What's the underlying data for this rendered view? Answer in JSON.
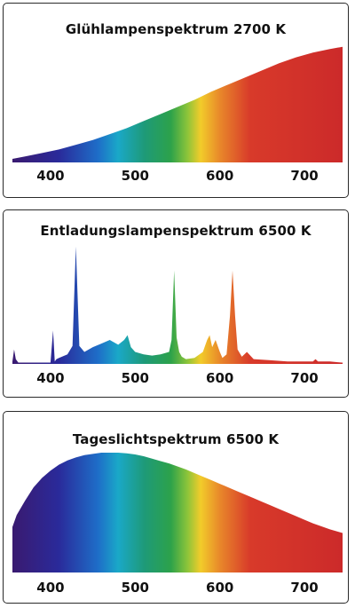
{
  "chart_data": [
    {
      "type": "area",
      "title": "Glühlampenspektrum 2700 K",
      "x_ticks": [
        400,
        500,
        600,
        700
      ],
      "xlim": [
        355,
        745
      ],
      "ylim": [
        0,
        1
      ],
      "x": [
        355,
        370,
        390,
        410,
        430,
        450,
        470,
        490,
        510,
        530,
        550,
        570,
        590,
        610,
        630,
        650,
        670,
        690,
        710,
        730,
        745
      ],
      "y": [
        0.03,
        0.05,
        0.08,
        0.11,
        0.15,
        0.19,
        0.24,
        0.29,
        0.35,
        0.41,
        0.47,
        0.53,
        0.6,
        0.66,
        0.72,
        0.78,
        0.84,
        0.89,
        0.93,
        0.96,
        0.98
      ]
    },
    {
      "type": "area",
      "title": "Entladungslampenspektrum 6500 K",
      "x_ticks": [
        400,
        500,
        600,
        700
      ],
      "xlim": [
        355,
        745
      ],
      "ylim": [
        0,
        1
      ],
      "x": [
        355,
        357,
        359,
        362,
        380,
        400,
        403,
        405,
        407,
        410,
        420,
        426,
        430,
        434,
        440,
        450,
        460,
        470,
        480,
        487,
        491,
        495,
        500,
        510,
        520,
        530,
        540,
        543,
        546,
        549,
        552,
        555,
        560,
        570,
        580,
        585,
        588,
        591,
        595,
        600,
        603,
        608,
        612,
        615,
        618,
        621,
        626,
        632,
        640,
        660,
        680,
        700,
        710,
        713,
        716,
        730,
        745
      ],
      "y": [
        0.02,
        0.12,
        0.04,
        0.01,
        0.01,
        0.01,
        0.28,
        0.02,
        0.04,
        0.05,
        0.08,
        0.15,
        0.98,
        0.15,
        0.1,
        0.14,
        0.17,
        0.2,
        0.16,
        0.2,
        0.24,
        0.14,
        0.1,
        0.08,
        0.07,
        0.08,
        0.1,
        0.2,
        0.78,
        0.22,
        0.1,
        0.06,
        0.04,
        0.05,
        0.1,
        0.2,
        0.24,
        0.14,
        0.2,
        0.1,
        0.05,
        0.08,
        0.4,
        0.78,
        0.4,
        0.12,
        0.06,
        0.1,
        0.04,
        0.03,
        0.02,
        0.02,
        0.02,
        0.04,
        0.02,
        0.02,
        0.01
      ]
    },
    {
      "type": "area",
      "title": "Tageslichtspektrum 6500 K",
      "x_ticks": [
        400,
        500,
        600,
        700
      ],
      "xlim": [
        355,
        745
      ],
      "ylim": [
        0,
        1
      ],
      "x": [
        355,
        360,
        370,
        380,
        390,
        400,
        410,
        420,
        430,
        440,
        450,
        460,
        470,
        480,
        490,
        500,
        510,
        520,
        530,
        540,
        550,
        560,
        570,
        580,
        590,
        600,
        610,
        620,
        630,
        640,
        650,
        660,
        670,
        680,
        690,
        700,
        710,
        720,
        730,
        740,
        745
      ],
      "y": [
        0.38,
        0.48,
        0.6,
        0.71,
        0.79,
        0.85,
        0.9,
        0.935,
        0.96,
        0.98,
        0.99,
        1.0,
        1.0,
        1.0,
        0.995,
        0.985,
        0.97,
        0.95,
        0.93,
        0.91,
        0.885,
        0.86,
        0.83,
        0.8,
        0.77,
        0.74,
        0.71,
        0.68,
        0.65,
        0.62,
        0.59,
        0.56,
        0.53,
        0.5,
        0.47,
        0.44,
        0.41,
        0.385,
        0.36,
        0.34,
        0.33
      ]
    }
  ],
  "spectrum_colors": {
    "violet": "#3a1a70",
    "indigo": "#2a2a9a",
    "blue": "#1e8ad0",
    "cyan": "#1aa8c8",
    "green": "#2da24a",
    "yellowgreen": "#8cc43a",
    "yellow": "#f2cc2a",
    "orange": "#e8862a",
    "red": "#d83a2a",
    "deepred": "#cc2a2a"
  }
}
